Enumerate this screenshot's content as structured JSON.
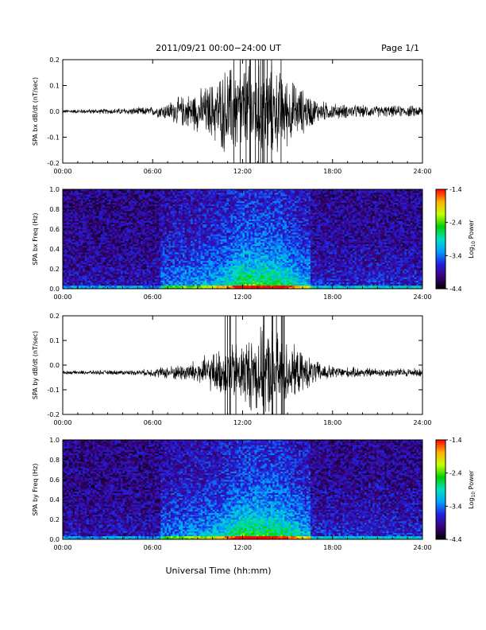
{
  "header": {
    "title": "2011/09/21  00:00−24:00 UT",
    "page": "Page 1/1"
  },
  "xlabel": "Universal Time (hh:mm)",
  "x_ticks": [
    "00:00",
    "06:00",
    "12:00",
    "18:00",
    "24:00"
  ],
  "colorbar": {
    "label_prefix": "Log",
    "label_sub": "10",
    "label_suffix": " Power",
    "ticks": [
      "-1.4",
      "-2.4",
      "-3.4",
      "-4.4"
    ],
    "range": [
      -4.4,
      -1.4
    ],
    "colors": [
      "#000000",
      "#3b007a",
      "#2020e0",
      "#00a0ff",
      "#00e0c0",
      "#00d000",
      "#c8ff00",
      "#ffb000",
      "#ff0000"
    ]
  },
  "chart_data": [
    {
      "type": "line",
      "title": "",
      "ylabel": "SPA bx dB/dt (nT/sec)",
      "xlim": [
        0,
        24
      ],
      "ylim": [
        -0.2,
        0.2
      ],
      "y_ticks": [
        "0.2",
        "0.1",
        "0.0",
        "-0.1",
        "-0.2"
      ],
      "baseline": 0.0,
      "envelope": {
        "hours": [
          0,
          3,
          6,
          7,
          8,
          9,
          10,
          11,
          12,
          13,
          14,
          15,
          16,
          17,
          18,
          19,
          21,
          24
        ],
        "amplitude": [
          0.008,
          0.012,
          0.02,
          0.04,
          0.07,
          0.09,
          0.13,
          0.2,
          0.2,
          0.2,
          0.2,
          0.15,
          0.1,
          0.05,
          0.035,
          0.03,
          0.025,
          0.025
        ]
      }
    },
    {
      "type": "heatmap",
      "ylabel": "SPA bx Freq (Hz)",
      "xlim": [
        0,
        24
      ],
      "ylim": [
        0.0,
        1.0
      ],
      "y_ticks": [
        "1.0",
        "0.8",
        "0.6",
        "0.4",
        "0.2",
        "0.0"
      ],
      "power_log10": [
        -4.4,
        -1.4
      ],
      "activity_hours": [
        6.5,
        10.5,
        12,
        14.5,
        16
      ],
      "activity_level": [
        0.35,
        0.55,
        0.85,
        0.8,
        0.55
      ]
    },
    {
      "type": "line",
      "ylabel": "SPA by dB/dt (nT/sec)",
      "xlim": [
        0,
        24
      ],
      "ylim": [
        -0.2,
        0.2
      ],
      "y_ticks": [
        "0.2",
        "0.1",
        "0.0",
        "-0.1",
        "-0.2"
      ],
      "baseline": -0.03,
      "envelope": {
        "hours": [
          0,
          3,
          5,
          6,
          8,
          9,
          10,
          11,
          12,
          13,
          14,
          15,
          16,
          17,
          18,
          19,
          21,
          24
        ],
        "amplitude": [
          0.008,
          0.01,
          0.012,
          0.02,
          0.04,
          0.06,
          0.09,
          0.12,
          0.15,
          0.2,
          0.2,
          0.14,
          0.09,
          0.05,
          0.03,
          0.025,
          0.02,
          0.02
        ]
      }
    },
    {
      "type": "heatmap",
      "ylabel": "SPA by Freq (Hz)",
      "xlim": [
        0,
        24
      ],
      "ylim": [
        0.0,
        1.0
      ],
      "y_ticks": [
        "1.0",
        "0.8",
        "0.6",
        "0.4",
        "0.2",
        "0.0"
      ],
      "power_log10": [
        -4.4,
        -1.4
      ],
      "activity_hours": [
        6.5,
        10.5,
        12,
        14.5,
        16
      ],
      "activity_level": [
        0.35,
        0.55,
        0.85,
        0.8,
        0.55
      ]
    }
  ]
}
